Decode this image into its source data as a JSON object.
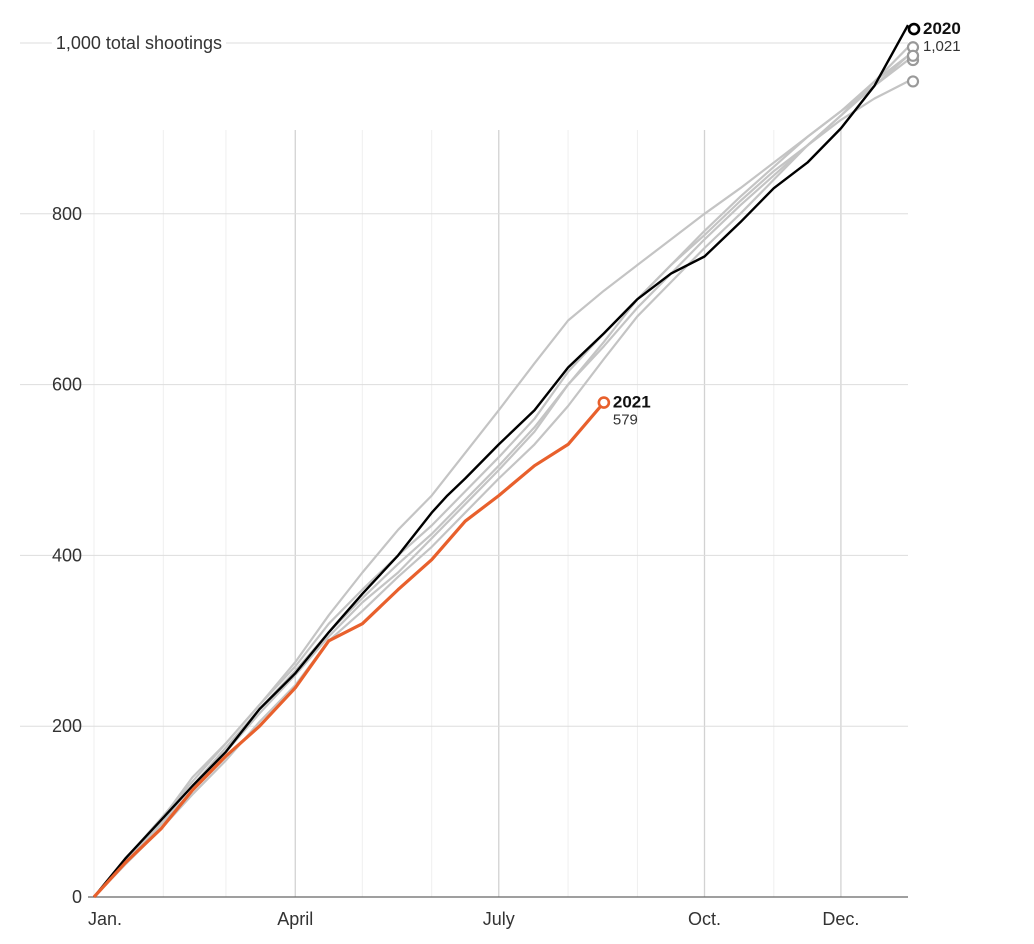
{
  "chart_data": {
    "type": "line",
    "title": "",
    "xlabel": "",
    "ylabel": "",
    "x_unit": "day of year",
    "xlim": [
      1,
      365
    ],
    "ylim": [
      0,
      1000
    ],
    "y_ticks": [
      {
        "value": 0,
        "label": "0"
      },
      {
        "value": 200,
        "label": "200"
      },
      {
        "value": 400,
        "label": "400"
      },
      {
        "value": 600,
        "label": "600"
      },
      {
        "value": 800,
        "label": "800"
      },
      {
        "value": 1000,
        "label": "1,000 total shootings"
      }
    ],
    "x_ticks": [
      {
        "day": 1,
        "label": "Jan."
      },
      {
        "day": 91,
        "label": "April"
      },
      {
        "day": 182,
        "label": "July"
      },
      {
        "day": 274,
        "label": "Oct."
      },
      {
        "day": 335,
        "label": "Dec."
      }
    ],
    "month_gridlines": [
      1,
      32,
      60,
      91,
      121,
      152,
      182,
      213,
      244,
      274,
      305,
      335
    ],
    "colors": {
      "grid": "#dddddd",
      "prior_years": "#c4c4c4",
      "prior_end_markers": "#999999",
      "highlight_2020": "#000000",
      "highlight_2021": "#e8602c"
    },
    "background_series": [
      {
        "x": [
          1,
          15,
          31,
          45,
          60,
          75,
          91,
          106,
          121,
          137,
          152,
          167,
          182,
          198,
          213,
          229,
          244,
          259,
          274,
          290,
          305,
          320,
          335,
          350,
          365
        ],
        "values": [
          0,
          45,
          90,
          140,
          180,
          225,
          275,
          330,
          380,
          430,
          470,
          520,
          570,
          625,
          675,
          710,
          740,
          770,
          800,
          830,
          860,
          890,
          920,
          950,
          985
        ]
      },
      {
        "x": [
          1,
          15,
          31,
          45,
          60,
          75,
          91,
          106,
          121,
          137,
          152,
          167,
          182,
          198,
          213,
          229,
          244,
          259,
          274,
          290,
          305,
          320,
          335,
          350,
          365
        ],
        "values": [
          0,
          40,
          85,
          125,
          170,
          215,
          260,
          305,
          345,
          380,
          420,
          460,
          500,
          545,
          600,
          650,
          700,
          740,
          775,
          815,
          850,
          880,
          910,
          935,
          955
        ]
      },
      {
        "x": [
          1,
          15,
          31,
          45,
          60,
          75,
          91,
          106,
          121,
          137,
          152,
          167,
          182,
          198,
          213,
          229,
          244,
          259,
          274,
          290,
          305,
          320,
          335,
          350,
          365
        ],
        "values": [
          0,
          38,
          80,
          120,
          160,
          205,
          248,
          300,
          335,
          375,
          410,
          450,
          490,
          530,
          575,
          630,
          680,
          720,
          760,
          800,
          840,
          880,
          915,
          955,
          995
        ]
      },
      {
        "x": [
          1,
          15,
          31,
          45,
          60,
          75,
          91,
          106,
          121,
          137,
          152,
          167,
          182,
          198,
          213,
          229,
          244,
          259,
          274,
          290,
          305,
          320,
          335,
          350,
          365
        ],
        "values": [
          0,
          42,
          88,
          130,
          175,
          220,
          265,
          310,
          350,
          390,
          425,
          465,
          505,
          550,
          600,
          645,
          690,
          730,
          770,
          810,
          845,
          880,
          915,
          950,
          980
        ]
      },
      {
        "x": [
          1,
          15,
          31,
          45,
          60,
          75,
          91,
          106,
          121,
          137,
          152,
          167,
          182,
          198,
          213,
          229,
          244,
          259,
          274,
          290,
          305,
          320,
          335,
          350,
          365
        ],
        "values": [
          0,
          44,
          92,
          135,
          180,
          225,
          270,
          320,
          360,
          400,
          435,
          475,
          515,
          560,
          615,
          660,
          700,
          740,
          780,
          820,
          855,
          890,
          920,
          955,
          985
        ]
      }
    ],
    "series": [
      {
        "name": "2020",
        "end_label": "1,021",
        "x": [
          1,
          15,
          31,
          45,
          60,
          75,
          91,
          106,
          121,
          137,
          152,
          159,
          167,
          182,
          198,
          213,
          229,
          244,
          259,
          274,
          290,
          305,
          320,
          335,
          350,
          365
        ],
        "values": [
          0,
          45,
          90,
          130,
          170,
          220,
          262,
          310,
          355,
          400,
          450,
          470,
          490,
          530,
          570,
          620,
          660,
          700,
          730,
          750,
          790,
          830,
          860,
          900,
          950,
          1021
        ]
      },
      {
        "name": "2021",
        "end_label": "579",
        "x": [
          1,
          15,
          31,
          45,
          60,
          75,
          91,
          106,
          121,
          137,
          152,
          167,
          182,
          198,
          213,
          229
        ],
        "values": [
          0,
          40,
          80,
          125,
          165,
          200,
          245,
          300,
          320,
          360,
          395,
          440,
          470,
          505,
          530,
          579
        ]
      }
    ]
  }
}
